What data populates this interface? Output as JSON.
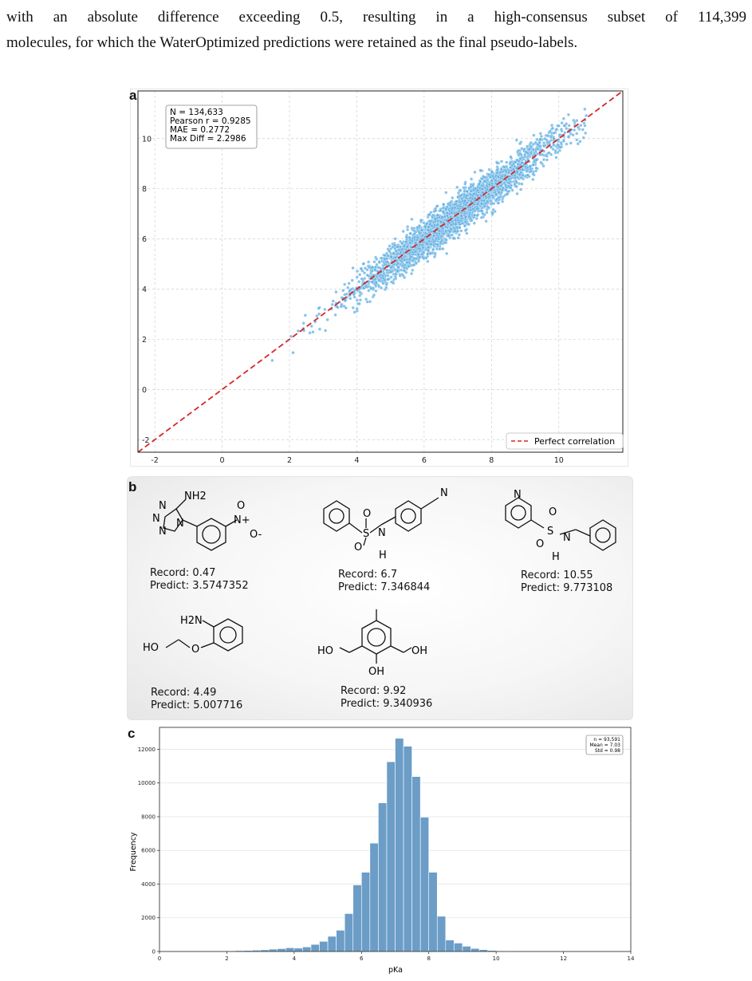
{
  "paragraph": {
    "line1": "with an absolute difference exceeding 0.5, resulting in a high-consensus subset of 114,399",
    "line2": "molecules, for which the WaterOptimized predictions were retained as the final pseudo-labels."
  },
  "panel_labels": {
    "a": "a",
    "b": "b",
    "c": "c"
  },
  "panel_a": {
    "stats": [
      "N = 134,633",
      "Pearson r = 0.9285",
      "MAE = 0.2772",
      "Max Diff = 2.2986"
    ],
    "legend": "Perfect correlation",
    "line_color": "#d62728",
    "point_color": "#5dade2"
  },
  "panel_b": {
    "molecules": [
      {
        "record": "Record: 0.47",
        "predict": "Predict: 3.5747352",
        "atoms": [
          "NH2",
          "N",
          "N",
          "N",
          "N",
          "N+",
          "O",
          "O-"
        ]
      },
      {
        "record": "Record: 6.7",
        "predict": "Predict: 7.346844",
        "atoms": [
          "N",
          "O",
          "S",
          "O",
          "N",
          "H"
        ]
      },
      {
        "record": "Record: 10.55",
        "predict": "Predict: 9.773108",
        "atoms": [
          "N",
          "O",
          "S",
          "O",
          "N",
          "H"
        ]
      },
      {
        "record": "Record: 4.49",
        "predict": "Predict: 5.007716",
        "atoms": [
          "H2N",
          "HO",
          "O"
        ]
      },
      {
        "record": "Record: 9.92",
        "predict": "Predict: 9.340936",
        "atoms": [
          "HO",
          "OH",
          "OH"
        ]
      }
    ]
  },
  "panel_c": {
    "stats": [
      "n = 93,591",
      "Mean = 7.03",
      "Std = 0.98"
    ],
    "bar_color": "#6b9dc7"
  },
  "chart_data": [
    {
      "type": "scatter",
      "xlim": [
        -2.5,
        11.9
      ],
      "ylim": [
        -2.5,
        11.9
      ],
      "x_ticks": [
        -2,
        0,
        2,
        4,
        6,
        8,
        10
      ],
      "y_ticks": [
        -2,
        0,
        2,
        4,
        6,
        8,
        10
      ],
      "grid": true,
      "legend_position": "bottom-right",
      "series": [
        {
          "name": "Perfect correlation",
          "type": "line",
          "x": [
            -2.5,
            11.9
          ],
          "y": [
            -2.5,
            11.9
          ]
        }
      ],
      "annotation": "N = 134,633; Pearson r = 0.9285; MAE = 0.2772; Max Diff = 2.2986"
    },
    {
      "type": "bar",
      "xlabel": "pKa",
      "ylabel": "Frequency",
      "xlim": [
        0,
        14
      ],
      "ylim": [
        0,
        13300
      ],
      "x_ticks": [
        0,
        2,
        4,
        6,
        8,
        10,
        12,
        14
      ],
      "y_ticks": [
        0,
        2000,
        4000,
        6000,
        8000,
        10000,
        12000
      ],
      "bin_width": 0.25,
      "bins_start": [
        2.25,
        2.5,
        2.75,
        3.0,
        3.25,
        3.5,
        3.75,
        4.0,
        4.25,
        4.5,
        4.75,
        5.0,
        5.25,
        5.5,
        5.75,
        6.0,
        6.25,
        6.5,
        6.75,
        7.0,
        7.25,
        7.5,
        7.75,
        8.0,
        8.25,
        8.5,
        8.75,
        9.0,
        9.25,
        9.5,
        9.75,
        10.0,
        10.25
      ],
      "values": [
        50,
        60,
        80,
        100,
        140,
        170,
        220,
        200,
        270,
        420,
        600,
        900,
        1260,
        2250,
        3950,
        4700,
        6430,
        8820,
        11260,
        12650,
        12180,
        10380,
        7970,
        4700,
        2090,
        680,
        500,
        310,
        180,
        110,
        60,
        35,
        20
      ],
      "grid": true,
      "legend_position": "top-right",
      "annotation": "n = 93,591; Mean = 7.03; Std = 0.98"
    }
  ]
}
